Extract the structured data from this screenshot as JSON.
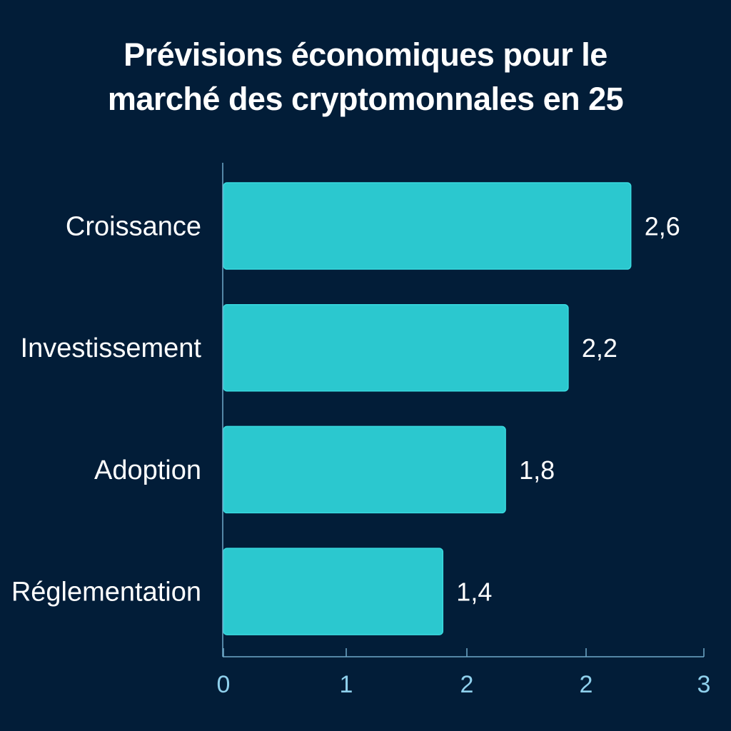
{
  "colors": {
    "background": "#021d38",
    "bar": "#2bc8cf",
    "bar_edge": "#39d9df",
    "axis": "#6fa9c9",
    "tick_label": "#8fd0ec",
    "text": "#ffffff"
  },
  "chart_data": {
    "type": "bar",
    "orientation": "horizontal",
    "title": "Prévisions économiques pour le marché des cryptomonnales en 25",
    "title_lines": [
      "Prévisions économiques pour le",
      "marché des cryptomonnales en 25"
    ],
    "categories": [
      "Croissance",
      "Investissement",
      "Adoption",
      "Réglementation"
    ],
    "values": [
      2.6,
      2.2,
      1.8,
      1.4
    ],
    "value_labels": [
      "2,6",
      "2,2",
      "1,8",
      "1,4"
    ],
    "xlabel": "",
    "ylabel": "",
    "x_ticks": [
      "0",
      "1",
      "2",
      "2",
      "3"
    ],
    "xlim": [
      0,
      3
    ],
    "grid": false,
    "legend": "none"
  }
}
